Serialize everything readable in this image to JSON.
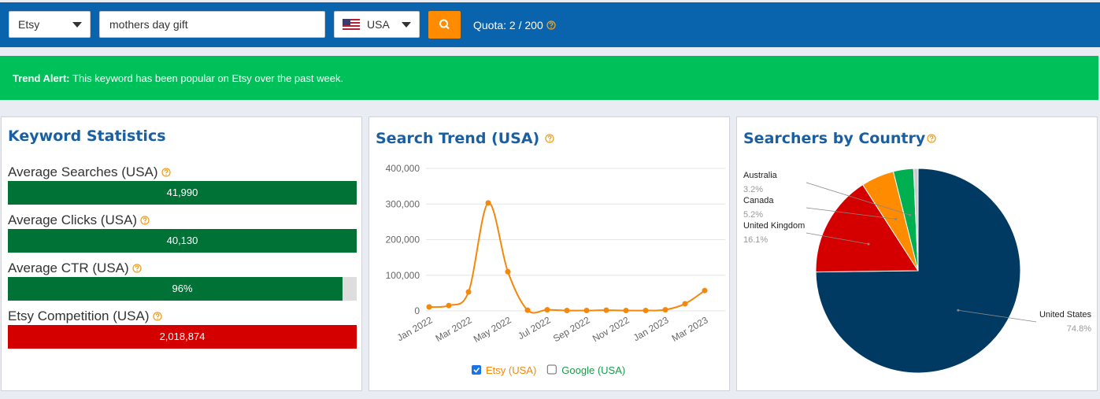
{
  "toolbar": {
    "platform": "Etsy",
    "query": "mothers day gift",
    "country": "USA",
    "quota": "Quota: 2 / 200"
  },
  "alert": {
    "title": "Trend Alert:",
    "text": "This keyword has been popular on Etsy over the past week."
  },
  "stats": {
    "title": "Keyword Statistics",
    "items": [
      {
        "label": "Average Searches (USA)",
        "value": 41990,
        "value_label": "41,990",
        "color": "#007236"
      },
      {
        "label": "Average Clicks (USA)",
        "value": 40130,
        "value_label": "40,130",
        "color": "#007236"
      },
      {
        "label": "Average CTR (USA)",
        "value": 96,
        "value_label": "96%",
        "color": "#007236",
        "xlim": [
          0,
          100
        ]
      },
      {
        "label": "Etsy Competition (USA)",
        "value": 2018874,
        "value_label": "2,018,874",
        "color": "#d40000"
      }
    ]
  },
  "chart_data": [
    {
      "type": "line",
      "title": "Search Trend (USA)",
      "categories": [
        "Jan 2022",
        null,
        "Mar 2022",
        null,
        "May 2022",
        null,
        "Jul 2022",
        null,
        "Sep 2022",
        null,
        "Nov 2022",
        null,
        "Jan 2023",
        null,
        "Mar 2023"
      ],
      "series": [
        {
          "name": "Etsy (USA)",
          "color": "#f5870a",
          "values": [
            11000,
            15000,
            53000,
            303000,
            110000,
            2000,
            3000,
            1000,
            1000,
            2000,
            1000,
            1000,
            3000,
            20000,
            57000
          ]
        }
      ],
      "legend": [
        {
          "name": "Etsy (USA)",
          "checked": true,
          "color": "#f5870a"
        },
        {
          "name": "Google (USA)",
          "checked": false,
          "color": "#1a9a4a"
        }
      ],
      "ylim": [
        0,
        400000
      ],
      "yticks": [
        0,
        {
          "value": 100000,
          "label": "100,000"
        },
        {
          "value": 200000,
          "label": "200,000"
        },
        {
          "value": 300000,
          "label": "300,000"
        },
        {
          "value": 400000,
          "label": "400,000"
        }
      ],
      "grid": true
    },
    {
      "type": "pie",
      "title": "Searchers by Country",
      "categories": [
        "United States",
        "United Kingdom",
        "Canada",
        "Australia",
        null
      ],
      "values": [
        74.8,
        16.1,
        5.2,
        3.2,
        0.7
      ],
      "value_labels": [
        "74.8%",
        "16.1%",
        "5.2%",
        "3.2%",
        null
      ],
      "colors": [
        "#003a63",
        "#d40000",
        "#ff8c00",
        "#00b050",
        "#cccccc"
      ]
    }
  ]
}
